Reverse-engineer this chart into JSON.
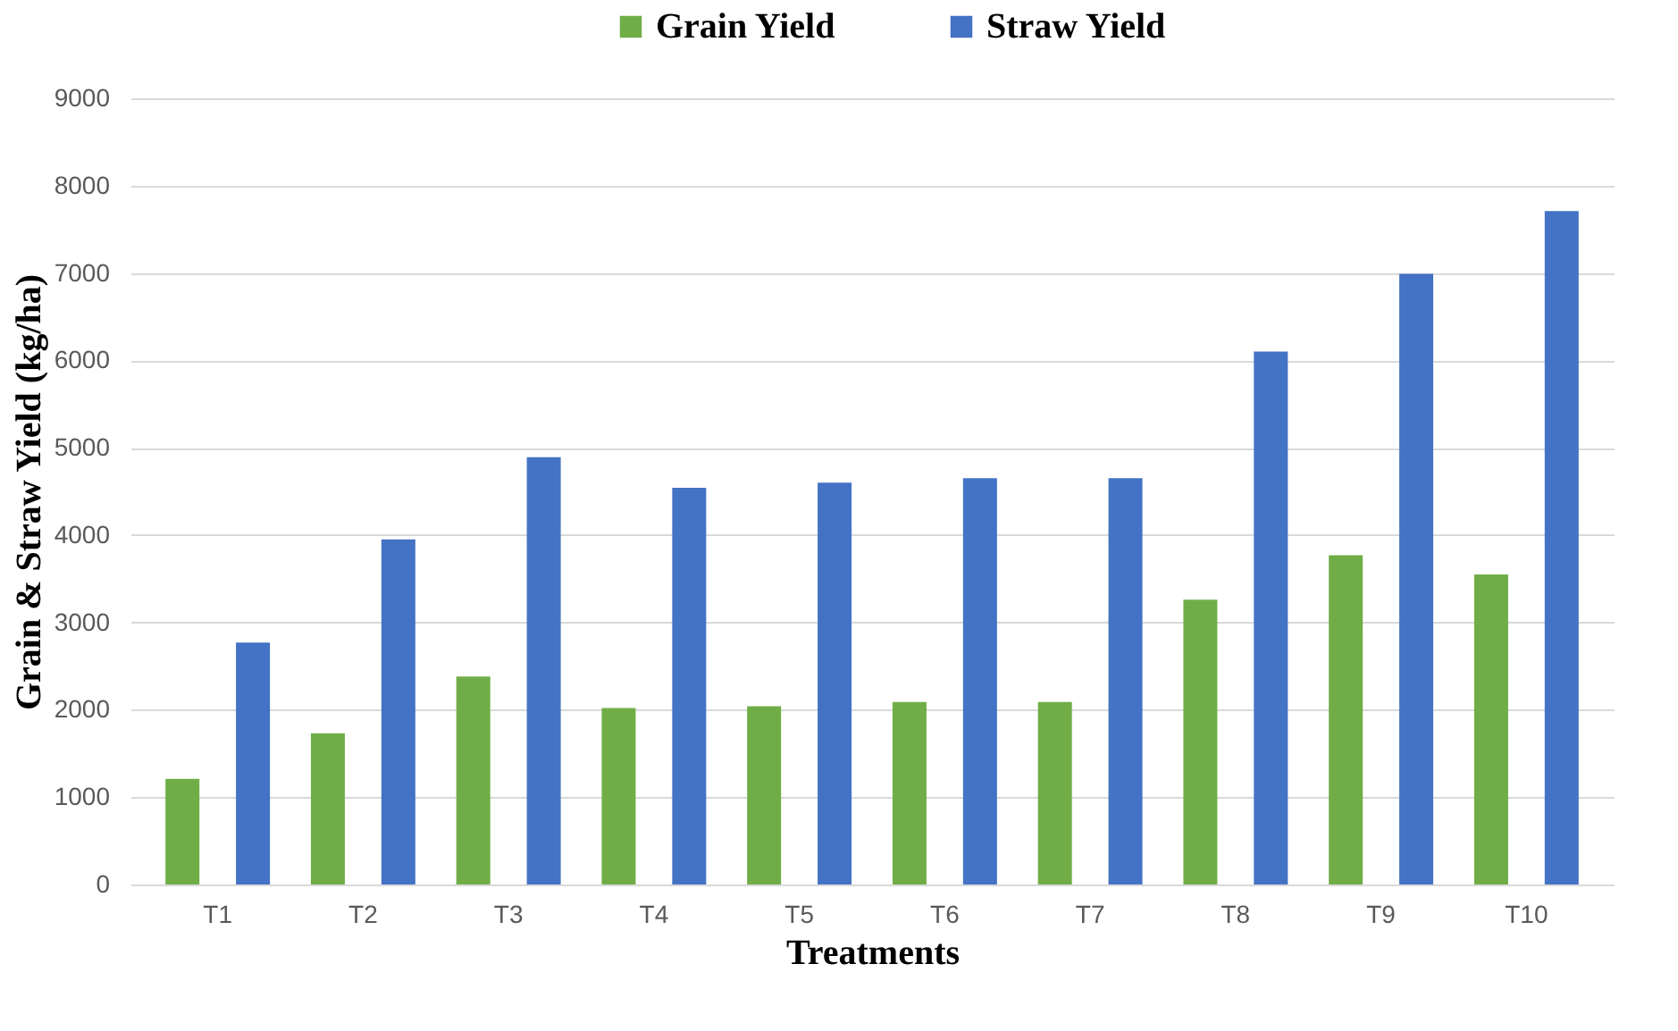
{
  "chart_data": {
    "type": "bar",
    "xlabel": "Treatments",
    "ylabel": "Grain & Straw Yield  (kg/ha)",
    "categories": [
      "T1",
      "T2",
      "T3",
      "T4",
      "T5",
      "T6",
      "T7",
      "T8",
      "T9",
      "T10"
    ],
    "series": [
      {
        "name": "Grain Yield",
        "color": "#70ad47",
        "values": [
          1210,
          1730,
          2380,
          2020,
          2040,
          2090,
          2090,
          3260,
          3770,
          3550
        ]
      },
      {
        "name": "Straw Yield",
        "color": "#4472c4",
        "values": [
          2770,
          3950,
          4890,
          4540,
          4600,
          4650,
          4650,
          6100,
          6990,
          7710
        ]
      }
    ],
    "ylim": [
      0,
      9000
    ],
    "yticks": [
      0,
      1000,
      2000,
      3000,
      4000,
      5000,
      6000,
      7000,
      8000,
      9000
    ],
    "grid": "y",
    "legend": "top"
  }
}
